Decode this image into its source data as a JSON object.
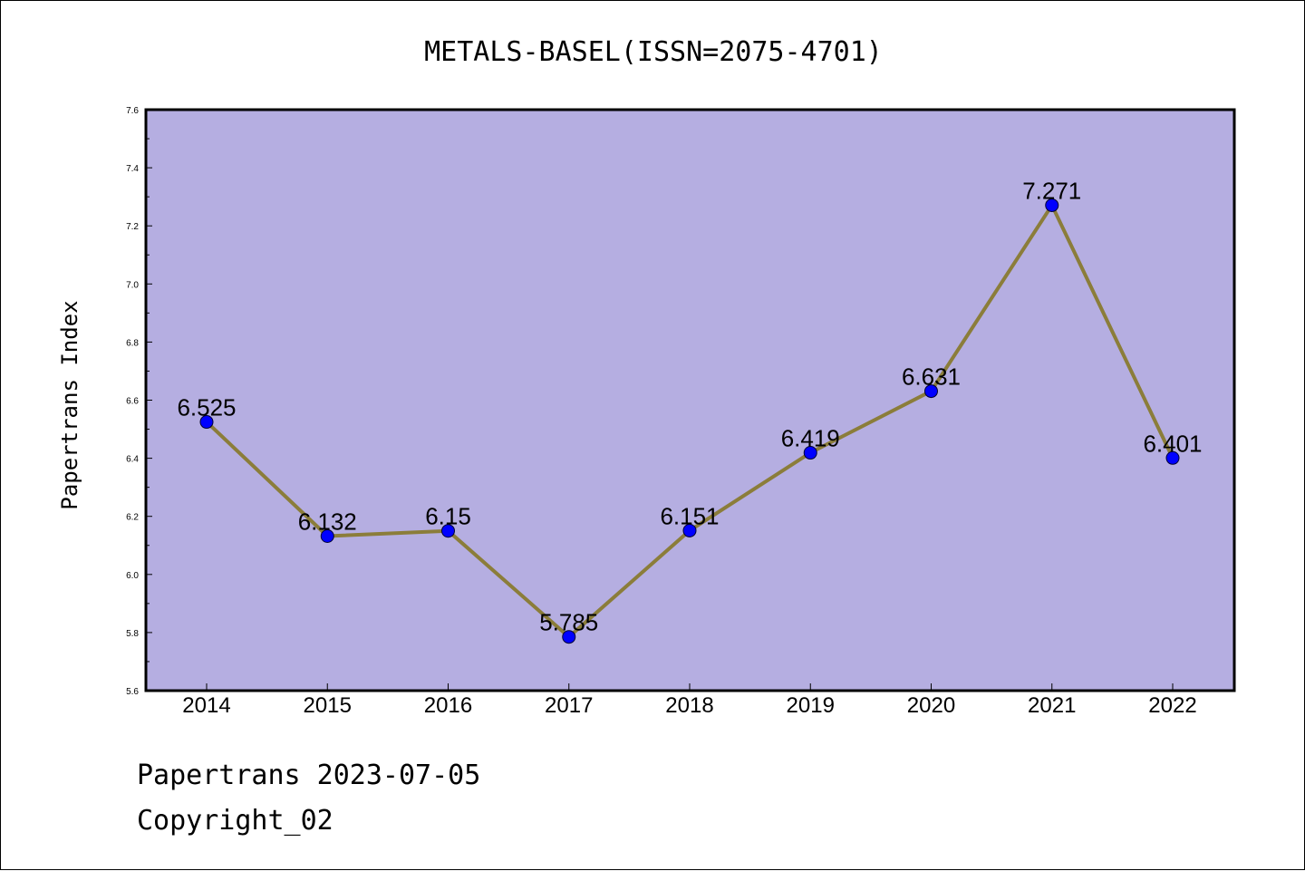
{
  "chart_data": {
    "type": "line",
    "title": "METALS-BASEL(ISSN=2075-4701)",
    "xlabel": "",
    "ylabel": "Papertrans Index",
    "categories": [
      "2014",
      "2015",
      "2016",
      "2017",
      "2018",
      "2019",
      "2020",
      "2021",
      "2022"
    ],
    "values": [
      6.525,
      6.132,
      6.15,
      5.785,
      6.151,
      6.419,
      6.631,
      7.271,
      6.401
    ],
    "data_labels": [
      "6.525",
      "6.132",
      "6.15",
      "5.785",
      "6.151",
      "6.419",
      "6.631",
      "7.271",
      "6.401"
    ],
    "ylim": [
      5.6,
      7.6
    ],
    "yticks": [
      "5.6",
      "5.8",
      "6.0",
      "6.2",
      "6.4",
      "6.6",
      "6.8",
      "7.0",
      "7.2",
      "7.4",
      "7.6"
    ],
    "grid": false,
    "legend": "none",
    "colors": {
      "plot_background": "#b5aee1",
      "line": "#8b7d3a",
      "marker": "#0000ff"
    }
  },
  "footer": {
    "line1": "Papertrans 2023-07-05",
    "line2": "Copyright_02"
  }
}
